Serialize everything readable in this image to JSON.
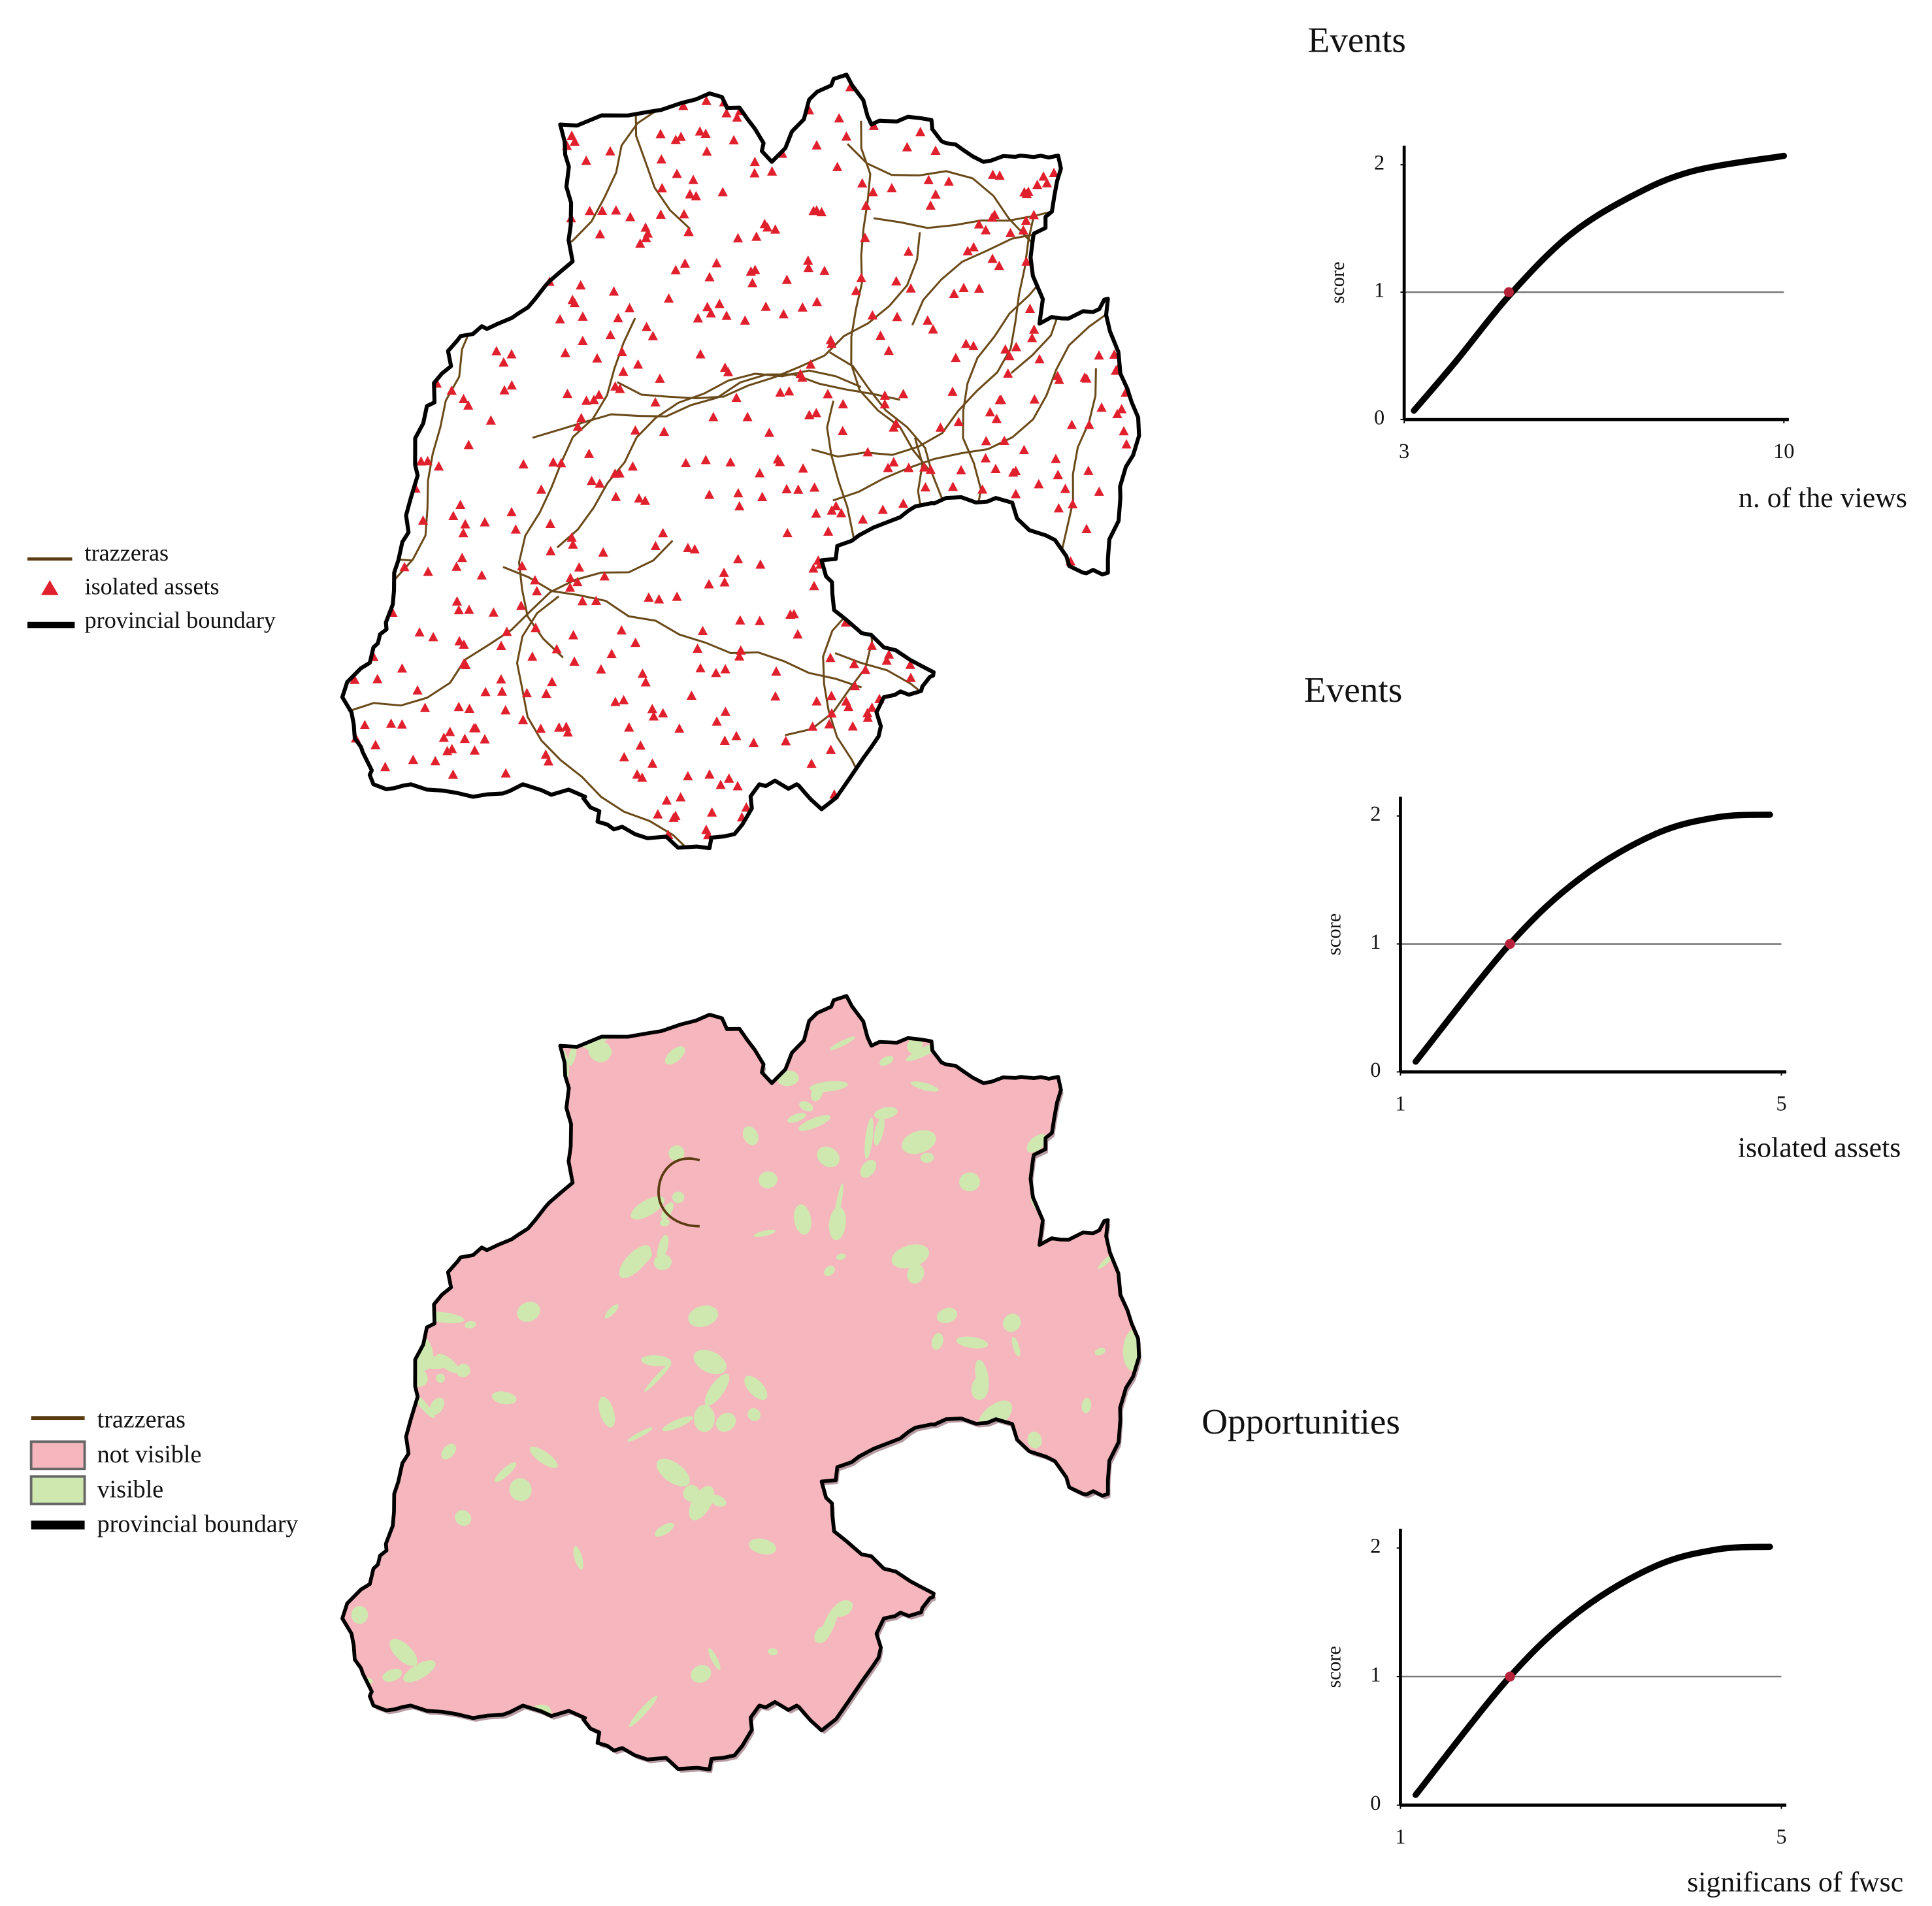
{
  "maps": [
    {
      "legend": [
        "trazzeras",
        "isolated assets",
        "provincial boundary"
      ]
    },
    {
      "legend": [
        "trazzeras",
        "not visible",
        "visible",
        "provincial boundary"
      ]
    }
  ],
  "chart_data": [
    {
      "type": "line",
      "title": "Events",
      "x_label": "n. of the views",
      "y_label": "score",
      "xlim": [
        3,
        10
      ],
      "xticks": [
        3,
        10
      ],
      "ylim": [
        0,
        2.15
      ],
      "yticks": [
        0,
        1,
        2
      ],
      "hline": 1,
      "series": [
        {
          "color": "#000000",
          "x": [
            3.18,
            3.96,
            4.93,
            6.03,
            7.18,
            8.32,
            10
          ],
          "values": [
            0.07,
            0.46,
            0.97,
            1.44,
            1.75,
            1.95,
            2.07
          ]
        }
      ],
      "marker": {
        "x": 4.93,
        "y": 1,
        "color": "#b5223a"
      }
    },
    {
      "type": "line",
      "title": "Events",
      "x_label": "isolated assets",
      "y_label": "score",
      "xlim": [
        1,
        5
      ],
      "xticks": [
        1,
        5
      ],
      "ylim": [
        0,
        2.15
      ],
      "yticks": [
        0,
        1,
        2
      ],
      "hline": 1,
      "series": [
        {
          "color": "#000000",
          "x": [
            1.16,
            2.15,
            2.9,
            3.68,
            4.33,
            4.88
          ],
          "values": [
            0.08,
            1,
            1.52,
            1.86,
            1.99,
            2.01
          ]
        }
      ],
      "marker": {
        "x": 2.15,
        "y": 1,
        "color": "#b5223a"
      }
    },
    {
      "type": "line",
      "title": "Opportunities",
      "x_label": "significans of fwsc",
      "y_label": "score",
      "xlim": [
        1,
        5
      ],
      "xticks": [
        1,
        5
      ],
      "ylim": [
        0,
        2.15
      ],
      "yticks": [
        0,
        1,
        2
      ],
      "hline": 1,
      "series": [
        {
          "color": "#000000",
          "x": [
            1.16,
            2.15,
            2.9,
            3.68,
            4.33,
            4.88
          ],
          "values": [
            0.08,
            1,
            1.52,
            1.86,
            1.99,
            2.01
          ]
        }
      ],
      "marker": {
        "x": 2.15,
        "y": 1,
        "color": "#b5223a"
      }
    }
  ]
}
